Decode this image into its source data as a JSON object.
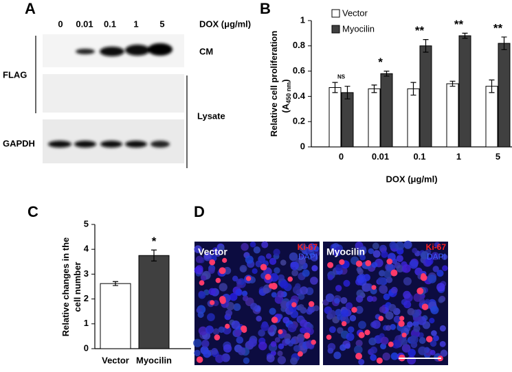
{
  "panel_a": {
    "letter": "A",
    "lanes": [
      "0",
      "0.01",
      "0.1",
      "1",
      "5"
    ],
    "lane_title": "DOX (μg/ml)",
    "flag": "FLAG",
    "cm": "CM",
    "lysate": "Lysate",
    "gapdh": "GAPDH"
  },
  "chart_data": [
    {
      "type": "bar",
      "letter": "B",
      "categories": [
        "0",
        "0.01",
        "0.1",
        "1",
        "5"
      ],
      "series": [
        {
          "name": "Vector",
          "color": "#ffffff",
          "values": [
            0.47,
            0.46,
            0.46,
            0.5,
            0.48
          ],
          "errors": [
            0.04,
            0.03,
            0.05,
            0.02,
            0.05
          ]
        },
        {
          "name": "Myocilin",
          "color": "#404040",
          "values": [
            0.43,
            0.58,
            0.8,
            0.88,
            0.82
          ],
          "errors": [
            0.05,
            0.02,
            0.05,
            0.02,
            0.05
          ]
        }
      ],
      "annotations": [
        "NS",
        "*",
        "**",
        "**",
        "**"
      ],
      "ylim": [
        0,
        1
      ],
      "yticks": [
        0,
        0.2,
        0.4,
        0.6,
        0.8,
        1
      ],
      "y_label": [
        "Relative cell proliferation",
        "(A",
        "450 nm",
        ")"
      ],
      "x_label": "DOX (μg/ml)",
      "legend": "top-left"
    },
    {
      "type": "bar",
      "letter": "C",
      "categories": [
        "Vector",
        "Myocilin"
      ],
      "series": [
        {
          "colors": [
            "#ffffff",
            "#404040"
          ],
          "values": [
            2.62,
            3.75
          ],
          "errors": [
            0.08,
            0.22
          ]
        }
      ],
      "annotations": [
        null,
        "*"
      ],
      "ylim": [
        0,
        5
      ],
      "yticks": [
        0,
        1,
        2,
        3,
        4,
        5
      ],
      "y_label": [
        "Relative changes in the",
        "cell number"
      ]
    }
  ],
  "panel_d": {
    "letter": "D",
    "images": [
      {
        "name": "Vector",
        "stain1": "Ki-67",
        "stain2": "DAPI"
      },
      {
        "name": "Myocilin",
        "stain1": "Ki-67",
        "stain2": "DAPI"
      }
    ]
  }
}
